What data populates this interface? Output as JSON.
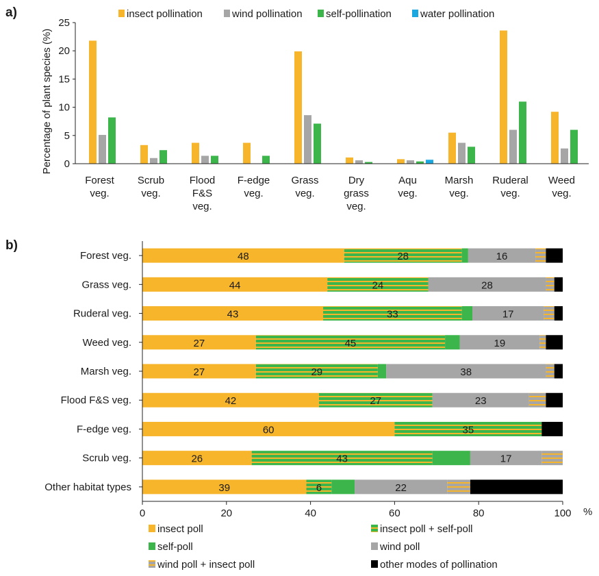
{
  "colors": {
    "insect": "#F7B52C",
    "wind": "#A6A6A6",
    "self": "#3CB54A",
    "water": "#1BA8E0",
    "other": "#000000",
    "axis": "#222222"
  },
  "chart_data": [
    {
      "panel_label": "a)",
      "type": "bar",
      "orientation": "vertical",
      "ylabel": "Percentage of plant species (%)",
      "ylim": [
        0,
        25
      ],
      "yticks": [
        "0",
        "5",
        "10",
        "15",
        "20",
        "25"
      ],
      "legend_position": "top",
      "categories": [
        [
          "Forest",
          "veg."
        ],
        [
          "Scrub",
          "veg."
        ],
        [
          "Flood",
          "F&S",
          "veg."
        ],
        [
          "F-edge",
          "veg."
        ],
        [
          "Grass",
          "veg."
        ],
        [
          "Dry",
          "grass",
          "veg."
        ],
        [
          "Aqu",
          "veg."
        ],
        [
          "Marsh",
          "veg."
        ],
        [
          "Ruderal",
          "veg."
        ],
        [
          "Weed",
          "veg."
        ]
      ],
      "series": [
        {
          "name": "insect pollination",
          "color_key": "insect",
          "values": [
            21.8,
            3.3,
            3.7,
            3.7,
            19.9,
            1.1,
            0.8,
            5.5,
            23.6,
            9.2
          ]
        },
        {
          "name": "wind pollination",
          "color_key": "wind",
          "values": [
            5.1,
            1.0,
            1.4,
            0,
            8.6,
            0.6,
            0.6,
            3.7,
            6.0,
            2.7
          ]
        },
        {
          "name": "self-pollination",
          "color_key": "self",
          "values": [
            8.2,
            2.4,
            1.4,
            1.4,
            7.1,
            0.3,
            0.4,
            3.0,
            11.0,
            6.0
          ]
        },
        {
          "name": "water pollination",
          "color_key": "water",
          "values": [
            0,
            0,
            0,
            0,
            0,
            0,
            0.7,
            0,
            0,
            0
          ]
        }
      ]
    },
    {
      "panel_label": "b)",
      "type": "bar",
      "orientation": "horizontal",
      "stacked": true,
      "xlim": [
        0,
        100
      ],
      "xticks": [
        "0",
        "20",
        "40",
        "60",
        "80",
        "100"
      ],
      "xunit": "%",
      "legend_position": "bottom",
      "categories": [
        "Forest veg.",
        "Grass veg.",
        "Ruderal veg.",
        "Weed veg.",
        "Marsh veg.",
        "Flood F&S veg.",
        "F-edge veg.",
        "Scrub veg.",
        "Other habitat types"
      ],
      "series": [
        {
          "name": "insect poll",
          "color_key": "insect",
          "pattern": "solid",
          "values": [
            48,
            44,
            43,
            27,
            27,
            42,
            60,
            26,
            39
          ],
          "labels": [
            "48",
            "44",
            "43",
            "27",
            "27",
            "42",
            "60",
            "26",
            "39"
          ]
        },
        {
          "name": "insect poll + self-poll",
          "color_key": "self",
          "pattern": "insect-self-stripes",
          "values": [
            28,
            24,
            33,
            45,
            29,
            27,
            35,
            43,
            6
          ],
          "labels": [
            "28",
            "24",
            "33",
            "45",
            "29",
            "27",
            "35",
            "43",
            "6"
          ]
        },
        {
          "name": "self-poll",
          "color_key": "self",
          "pattern": "solid",
          "values": [
            1.5,
            0,
            2.5,
            3.5,
            2,
            0,
            0,
            9,
            5.5
          ],
          "labels": [
            "",
            "",
            "",
            "",
            "",
            "",
            "",
            "",
            ""
          ]
        },
        {
          "name": "wind poll",
          "color_key": "wind",
          "pattern": "solid",
          "values": [
            16,
            28,
            17,
            19,
            38,
            23,
            0,
            17,
            22
          ],
          "labels": [
            "16",
            "28",
            "17",
            "19",
            "38",
            "23",
            "",
            "17",
            "22"
          ]
        },
        {
          "name": "wind poll + insect poll",
          "color_key": "wind",
          "pattern": "wind-insect-stripes",
          "values": [
            2.5,
            2,
            2.5,
            1.5,
            2,
            4,
            0,
            5,
            5.5
          ],
          "labels": [
            "",
            "",
            "",
            "",
            "",
            "",
            "",
            "",
            ""
          ]
        },
        {
          "name": "other modes of pollination",
          "color_key": "other",
          "pattern": "solid",
          "values": [
            4,
            2,
            2,
            4,
            2,
            4,
            5,
            0,
            22
          ],
          "labels": [
            "",
            "",
            "",
            "",
            "",
            "",
            "",
            "",
            ""
          ]
        }
      ]
    }
  ]
}
